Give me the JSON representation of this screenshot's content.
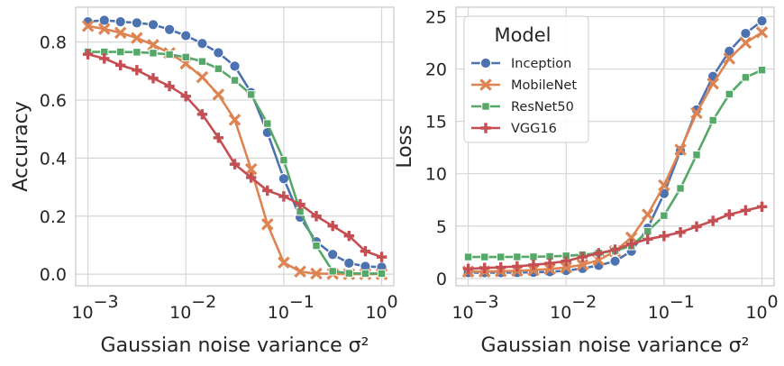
{
  "chart_data": [
    {
      "type": "line",
      "xlabel": "Gaussian noise variance σ²",
      "ylabel": "Accuracy",
      "xscale": "log",
      "xlim": [
        0.00075,
        1.33
      ],
      "ylim": [
        -0.04,
        0.92
      ],
      "xticks": [
        0.001,
        0.01,
        0.1,
        1
      ],
      "xtick_labels": [
        [
          "10",
          "−3"
        ],
        [
          "10",
          "−2"
        ],
        [
          "10",
          "−1"
        ],
        [
          "10",
          "0"
        ]
      ],
      "yticks": [
        0.0,
        0.2,
        0.4,
        0.6,
        0.8
      ],
      "ytick_labels": [
        "0.0",
        "0.2",
        "0.4",
        "0.6",
        "0.8"
      ],
      "grid": true,
      "x": [
        0.001,
        0.00147,
        0.00215,
        0.00316,
        0.00464,
        0.00681,
        0.01,
        0.0147,
        0.0215,
        0.0316,
        0.0464,
        0.0681,
        0.1,
        0.147,
        0.215,
        0.316,
        0.464,
        0.681,
        1.0
      ],
      "series": [
        {
          "name": "Inception",
          "color": "#4c72b0",
          "marker": "circle",
          "values": [
            0.87,
            0.875,
            0.87,
            0.866,
            0.86,
            0.843,
            0.822,
            0.795,
            0.763,
            0.717,
            0.626,
            0.488,
            0.329,
            0.196,
            0.112,
            0.068,
            0.038,
            0.027,
            0.024
          ]
        },
        {
          "name": "MobileNet",
          "color": "#dd8452",
          "marker": "x",
          "values": [
            0.855,
            0.845,
            0.832,
            0.814,
            0.79,
            0.762,
            0.726,
            0.679,
            0.619,
            0.532,
            0.362,
            0.172,
            0.04,
            0.009,
            0.002,
            0.001,
            0.0,
            0.0,
            0.0
          ]
        },
        {
          "name": "ResNet50",
          "color": "#55a868",
          "marker": "square",
          "values": [
            0.766,
            0.766,
            0.766,
            0.765,
            0.762,
            0.757,
            0.748,
            0.733,
            0.708,
            0.668,
            0.619,
            0.519,
            0.393,
            0.216,
            0.098,
            0.01,
            0.003,
            0.002,
            0.002
          ]
        },
        {
          "name": "VGG16",
          "color": "#c44e52",
          "marker": "plus",
          "values": [
            0.758,
            0.743,
            0.72,
            0.703,
            0.675,
            0.648,
            0.613,
            0.551,
            0.47,
            0.379,
            0.333,
            0.288,
            0.268,
            0.241,
            0.2,
            0.166,
            0.132,
            0.079,
            0.059
          ]
        }
      ]
    },
    {
      "type": "line",
      "xlabel": "Gaussian noise variance σ²",
      "ylabel": "Loss",
      "xscale": "log",
      "xlim": [
        0.00075,
        1.33
      ],
      "ylim": [
        -0.7,
        25.9
      ],
      "xticks": [
        0.001,
        0.01,
        0.1,
        1
      ],
      "xtick_labels": [
        [
          "10",
          "−3"
        ],
        [
          "10",
          "−2"
        ],
        [
          "10",
          "−1"
        ],
        [
          "10",
          "0"
        ]
      ],
      "yticks": [
        0,
        5,
        10,
        15,
        20,
        25
      ],
      "ytick_labels": [
        "0",
        "5",
        "10",
        "15",
        "20",
        "25"
      ],
      "grid": true,
      "legend": {
        "title": "Model",
        "placement": "upper-left"
      },
      "x": [
        0.001,
        0.00147,
        0.00215,
        0.00316,
        0.00464,
        0.00681,
        0.01,
        0.0147,
        0.0215,
        0.0316,
        0.0464,
        0.0681,
        0.1,
        0.147,
        0.215,
        0.316,
        0.464,
        0.681,
        1.0
      ],
      "series": [
        {
          "name": "Inception",
          "color": "#4c72b0",
          "marker": "circle",
          "values": [
            0.55,
            0.55,
            0.55,
            0.56,
            0.58,
            0.63,
            0.75,
            0.95,
            1.25,
            1.65,
            2.6,
            4.8,
            8.1,
            12.2,
            16.1,
            19.3,
            21.7,
            23.4,
            24.6
          ]
        },
        {
          "name": "MobileNet",
          "color": "#dd8452",
          "marker": "x",
          "values": [
            0.65,
            0.66,
            0.69,
            0.73,
            0.8,
            0.9,
            1.05,
            1.3,
            1.75,
            2.6,
            3.9,
            6.1,
            8.9,
            12.3,
            15.8,
            18.6,
            21.0,
            22.5,
            23.5
          ]
        },
        {
          "name": "ResNet50",
          "color": "#55a868",
          "marker": "square",
          "values": [
            2.05,
            2.05,
            2.05,
            2.06,
            2.07,
            2.1,
            2.16,
            2.26,
            2.42,
            2.65,
            3.1,
            4.5,
            6.0,
            8.6,
            11.8,
            15.1,
            17.6,
            19.2,
            19.9
          ]
        },
        {
          "name": "VGG16",
          "color": "#c44e52",
          "marker": "plus",
          "values": [
            0.92,
            1.0,
            1.06,
            1.15,
            1.3,
            1.45,
            1.65,
            2.05,
            2.4,
            2.75,
            3.3,
            3.75,
            4.05,
            4.4,
            4.95,
            5.5,
            6.1,
            6.5,
            6.85
          ]
        }
      ]
    }
  ]
}
